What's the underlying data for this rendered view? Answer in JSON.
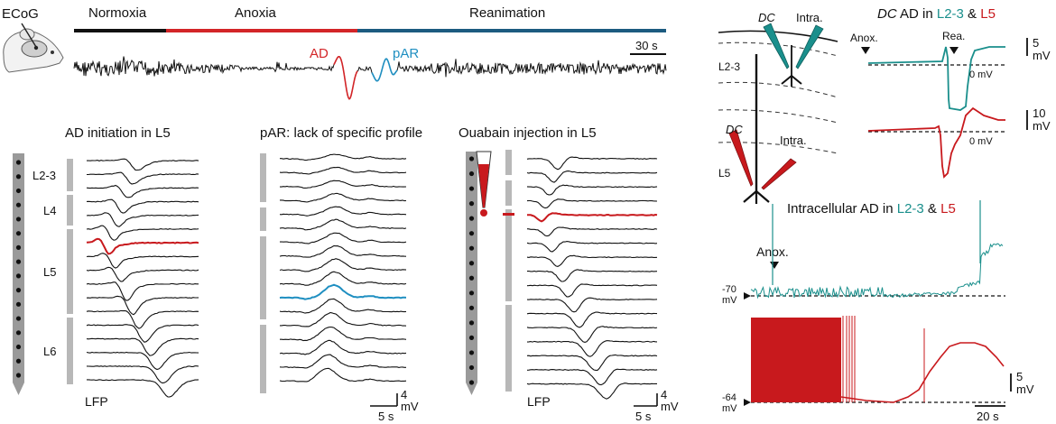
{
  "colors": {
    "black": "#111111",
    "red": "#c8191d",
    "teal": "#1a8f8c",
    "blue": "#1f8fc1",
    "navy": "#1c5b80",
    "anoxia_red": "#d32528",
    "gray": "#b8b8b8",
    "probe": "#9a9a9a"
  },
  "icons": [
    "rat-head-icon",
    "electrode-probe-icon",
    "syringe-icon",
    "pipette-icon"
  ],
  "ecog": {
    "label": "ECoG",
    "phases": [
      "Normoxia",
      "Anoxia",
      "Reanimation"
    ],
    "ad_label": "AD",
    "par_label": "pAR",
    "scale_label": "30 s"
  },
  "panel_ad_l5": {
    "title": "AD initiation in L5",
    "layers": [
      "L2-3",
      "L4",
      "L5",
      "L6"
    ],
    "footer": "LFP"
  },
  "panel_par": {
    "title": "pAR: lack of specific profile",
    "scale_v": "4 mV",
    "scale_t": "5 s"
  },
  "panel_ouabain": {
    "title": "Ouabain injection in L5",
    "footer": "LFP",
    "scale_v": "4 mV",
    "scale_t": "5 s"
  },
  "cortex": {
    "dc_top": "DC",
    "intra_top": "Intra.",
    "l23": "L2-3",
    "dc_bottom": "DC",
    "intra_bottom": "Intra.",
    "l5": "L5"
  },
  "dc_panel": {
    "title_dc": "DC",
    "title_rest": " AD in ",
    "title_l23": "L2-3",
    "title_amp": " & ",
    "title_l5": "L5",
    "anox": "Anox.",
    "rea": "Rea.",
    "zero1": "0 mV",
    "zero2": "0 mV",
    "scale1": "5",
    "scale2": "10",
    "unit": "mV"
  },
  "intra_panel": {
    "title_a": "Intracellular AD in ",
    "title_l23": "L2-3",
    "title_amp": " & ",
    "title_l5": "L5",
    "anox": "Anox.",
    "v1": "-70",
    "v2": "-64",
    "mv": "mV",
    "scale_v": "5",
    "scale_unit": "mV",
    "scale_t": "20 s"
  }
}
